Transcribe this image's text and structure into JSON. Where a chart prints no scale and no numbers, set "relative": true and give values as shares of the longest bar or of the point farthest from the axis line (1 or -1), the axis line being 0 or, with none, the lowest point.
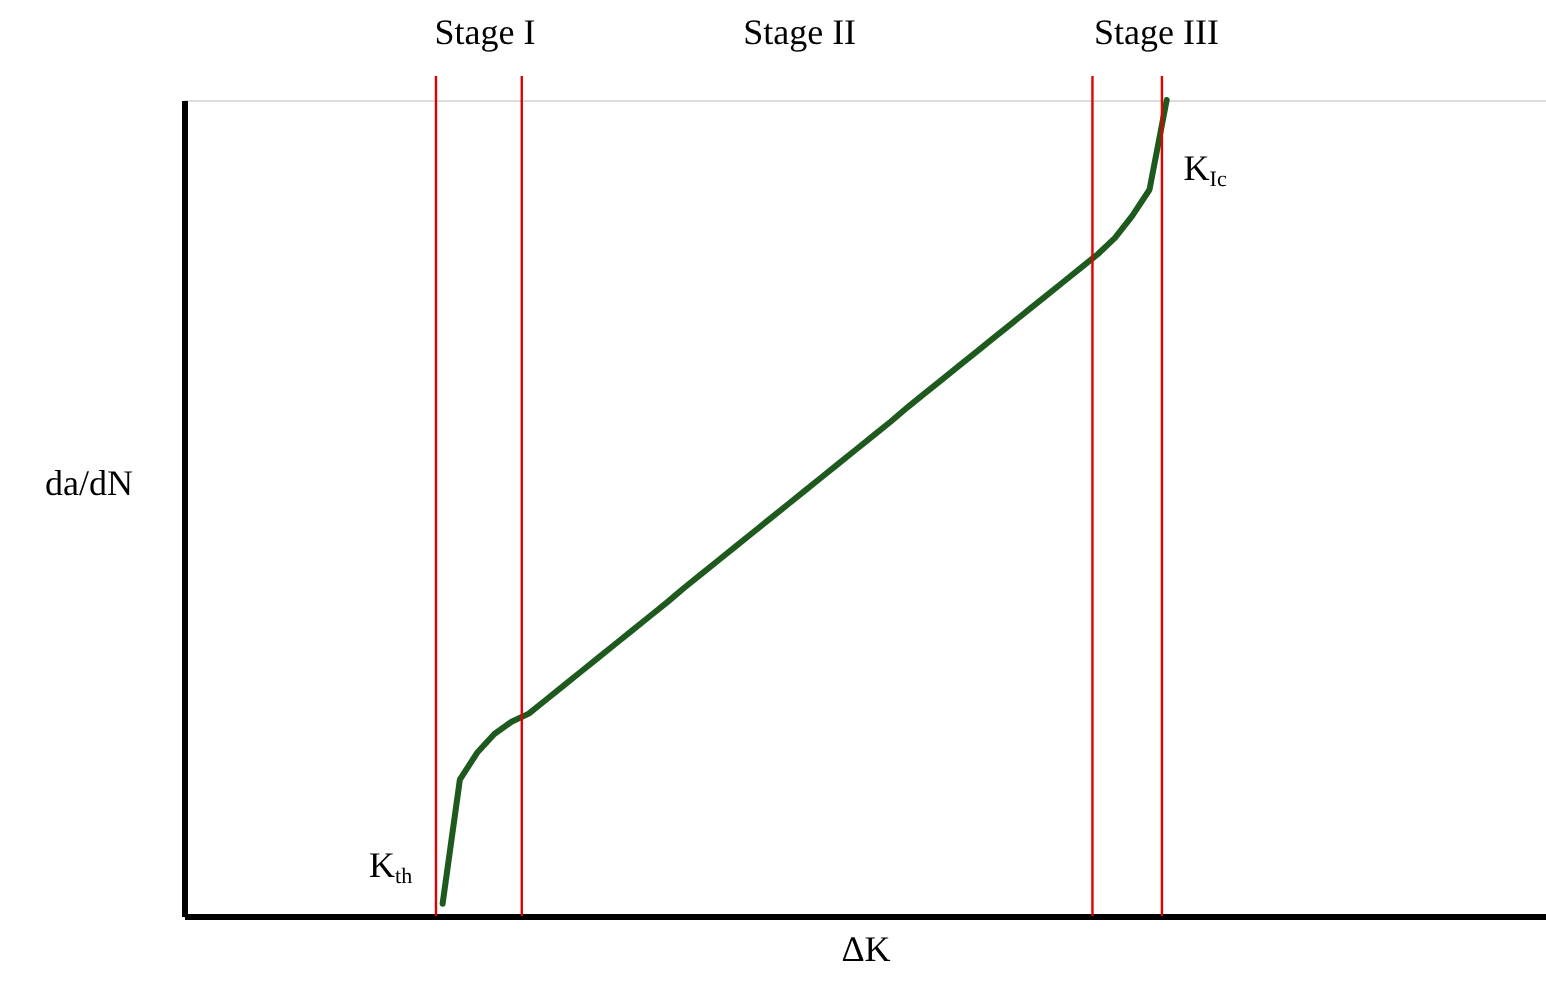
{
  "chart_data": {
    "type": "line",
    "relative": true,
    "xlabel": "ΔK",
    "ylabel": "da/dN",
    "grid": false,
    "categories": [
      null,
      null,
      null,
      null,
      null,
      null,
      null,
      null,
      null,
      null,
      null,
      null,
      null,
      null,
      null,
      null,
      null,
      null,
      null,
      null,
      null,
      null,
      null,
      null,
      null,
      null,
      null,
      null,
      null,
      null,
      null,
      null,
      null,
      null,
      null,
      null,
      null,
      null,
      null,
      null,
      null,
      null,
      null,
      null,
      null,
      null,
      null,
      null,
      null,
      null,
      null,
      null,
      null,
      null,
      null,
      null,
      null,
      null,
      null,
      null,
      null,
      null,
      null,
      null,
      null,
      null,
      null,
      null,
      null,
      null,
      null,
      null,
      null,
      null,
      null,
      null,
      null,
      null,
      null,
      null
    ],
    "series": [
      {
        "color": "#1e5a1e",
        "values": [
          null,
          null,
          null,
          null,
          null,
          null,
          null,
          null,
          null,
          null,
          null,
          null,
          null,
          null,
          null,
          0.015,
          0.167,
          0.2,
          0.223,
          0.238,
          0.248,
          0.265,
          0.282,
          0.299,
          0.316,
          0.333,
          0.35,
          0.367,
          0.384,
          0.402,
          0.419,
          0.436,
          0.453,
          0.47,
          0.487,
          0.504,
          0.521,
          0.538,
          0.555,
          0.572,
          0.589,
          0.606,
          0.624,
          0.641,
          0.658,
          0.675,
          0.692,
          0.709,
          0.726,
          0.743,
          0.76,
          0.777,
          0.794,
          0.811,
          0.831,
          0.858,
          0.89,
          1.0,
          null,
          null,
          null,
          null,
          null,
          null,
          null,
          null,
          null,
          null,
          null,
          null,
          null,
          null,
          null,
          null,
          null,
          null,
          null,
          null,
          null,
          null
        ]
      }
    ],
    "annotations": [
      "Stage I",
      "Stage II",
      "Stage III",
      "K$_{th}$",
      "K$_{Ic}$"
    ]
  }
}
